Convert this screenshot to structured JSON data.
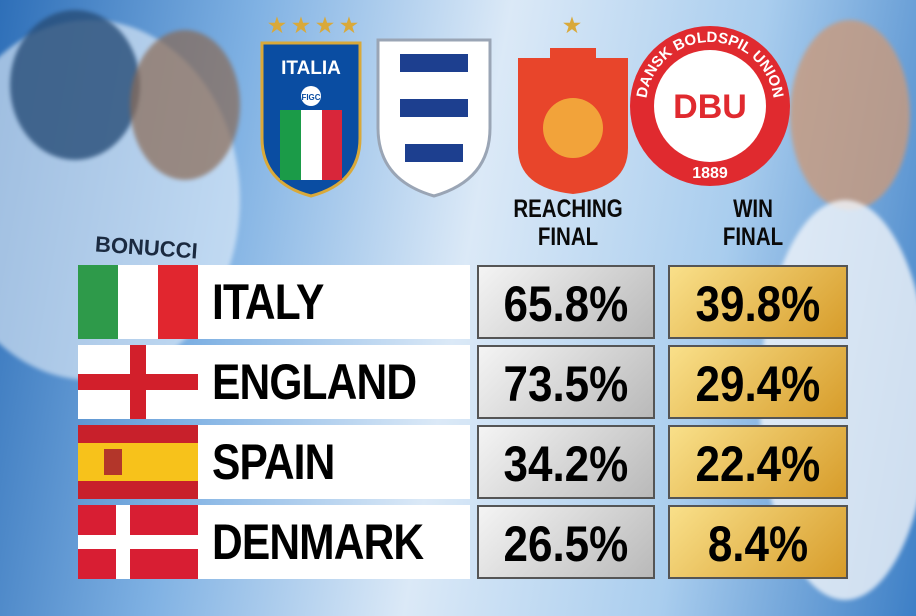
{
  "header": {
    "col_reaching": "REACHING FINAL",
    "col_win": "WIN FINAL"
  },
  "crests": {
    "italy_word": "ITALIA",
    "italy_fed": "FIGC",
    "denmark_initials": "DBU",
    "denmark_ring": "DANSK BOLDSPIL UNION",
    "denmark_year": "1889"
  },
  "shirt_name": "BONUCCI",
  "table": {
    "rows": [
      [
        "ITALY",
        "65.8%",
        "39.8%"
      ],
      [
        "ENGLAND",
        "73.5%",
        "29.4%"
      ],
      [
        "SPAIN",
        "34.2%",
        "22.4%"
      ],
      [
        "DENMARK",
        "26.5%",
        "8.4%"
      ]
    ]
  }
}
